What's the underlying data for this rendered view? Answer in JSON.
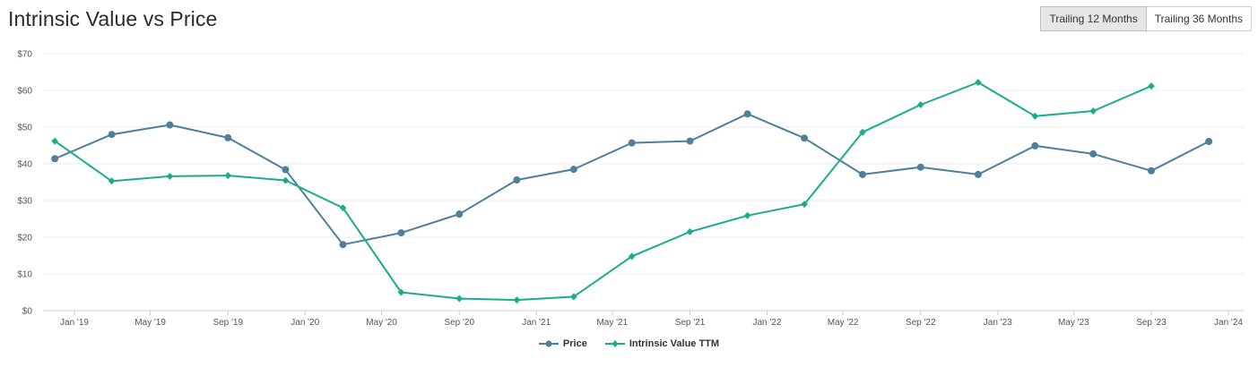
{
  "header": {
    "title": "Intrinsic Value vs Price",
    "toggle_buttons": [
      {
        "label": "Trailing 12 Months",
        "active": true
      },
      {
        "label": "Trailing 36 Months",
        "active": false
      }
    ]
  },
  "chart_data": {
    "type": "line",
    "title": "Intrinsic Value vs Price",
    "xlabel": "",
    "ylabel": "",
    "ylim": [
      0,
      70
    ],
    "y_ticks": [
      "$0",
      "$10",
      "$20",
      "$30",
      "$40",
      "$50",
      "$60",
      "$70"
    ],
    "x_ticks": [
      "Jan '19",
      "May '19",
      "Sep '19",
      "Jan '20",
      "May '20",
      "Sep '20",
      "Jan '21",
      "May '21",
      "Sep '21",
      "Jan '22",
      "May '22",
      "Sep '22",
      "Jan '23",
      "May '23",
      "Sep '23",
      "Jan '24"
    ],
    "grid": true,
    "legend_position": "bottom-center",
    "series": [
      {
        "name": "Price",
        "color": "#4e7f9b",
        "marker": "circle",
        "points": [
          [
            "2018-12-01",
            41.4
          ],
          [
            "2019-03-01",
            48.0
          ],
          [
            "2019-06-01",
            50.6
          ],
          [
            "2019-09-01",
            47.1
          ],
          [
            "2019-12-01",
            38.4
          ],
          [
            "2020-03-01",
            18.0
          ],
          [
            "2020-06-01",
            21.2
          ],
          [
            "2020-09-01",
            26.3
          ],
          [
            "2020-12-01",
            35.6
          ],
          [
            "2021-03-01",
            38.5
          ],
          [
            "2021-06-01",
            45.7
          ],
          [
            "2021-09-01",
            46.2
          ],
          [
            "2021-12-01",
            53.6
          ],
          [
            "2022-03-01",
            47.0
          ],
          [
            "2022-06-01",
            37.1
          ],
          [
            "2022-09-01",
            39.1
          ],
          [
            "2022-12-01",
            37.1
          ],
          [
            "2023-03-01",
            44.9
          ],
          [
            "2023-06-01",
            42.7
          ],
          [
            "2023-09-01",
            38.1
          ],
          [
            "2023-12-01",
            46.1
          ]
        ]
      },
      {
        "name": "Intrinsic Value TTM",
        "color": "#1aad8c",
        "marker": "diamond",
        "points": [
          [
            "2018-12-01",
            46.2
          ],
          [
            "2019-03-01",
            35.3
          ],
          [
            "2019-06-01",
            36.6
          ],
          [
            "2019-09-01",
            36.8
          ],
          [
            "2019-12-01",
            35.5
          ],
          [
            "2020-03-01",
            28.0
          ],
          [
            "2020-06-01",
            5.0
          ],
          [
            "2020-09-01",
            3.3
          ],
          [
            "2020-12-01",
            2.9
          ],
          [
            "2021-03-01",
            3.8
          ],
          [
            "2021-06-01",
            14.8
          ],
          [
            "2021-09-01",
            21.5
          ],
          [
            "2021-12-01",
            25.9
          ],
          [
            "2022-03-01",
            29.0
          ],
          [
            "2022-06-01",
            48.6
          ],
          [
            "2022-09-01",
            56.1
          ],
          [
            "2022-12-01",
            62.2
          ],
          [
            "2023-03-01",
            53.0
          ],
          [
            "2023-06-01",
            54.4
          ],
          [
            "2023-09-01",
            61.2
          ]
        ]
      }
    ]
  }
}
